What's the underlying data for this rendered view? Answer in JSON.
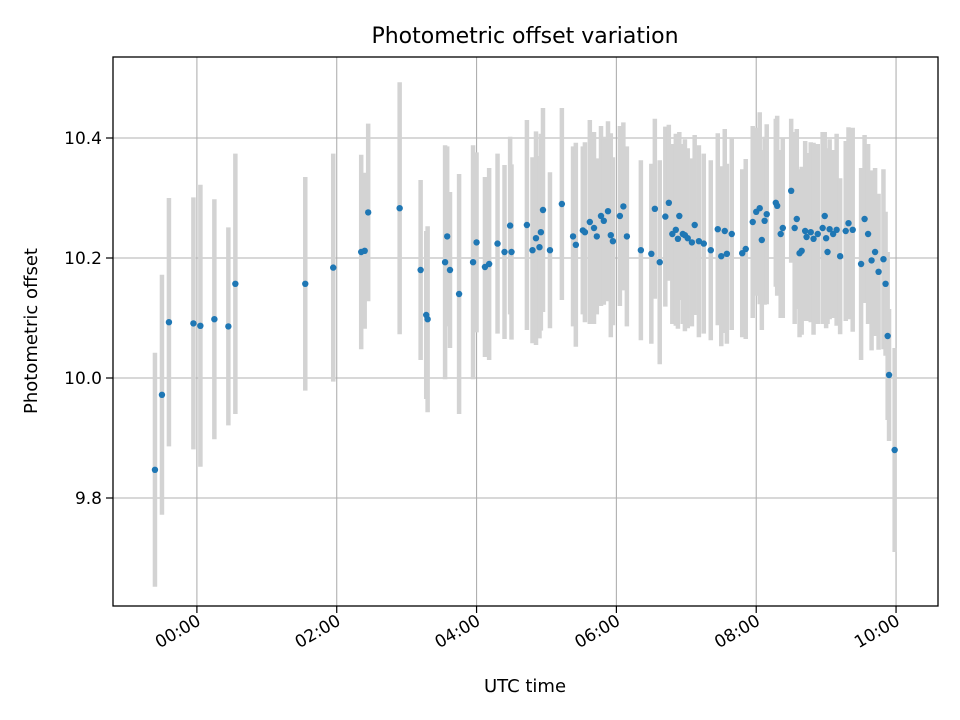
{
  "chart_data": {
    "type": "scatter",
    "title": "Photometric offset variation",
    "xlabel": "UTC time",
    "ylabel": "Photometric offset",
    "x_unit": "hours UTC",
    "xlim": [
      -1.2,
      10.6
    ],
    "ylim": [
      9.62,
      10.535
    ],
    "grid": true,
    "x_ticks": [
      {
        "value": 0,
        "label": "00:00"
      },
      {
        "value": 2,
        "label": "02:00"
      },
      {
        "value": 4,
        "label": "04:00"
      },
      {
        "value": 6,
        "label": "06:00"
      },
      {
        "value": 8,
        "label": "08:00"
      },
      {
        "value": 10,
        "label": "10:00"
      }
    ],
    "y_ticks": [
      {
        "value": 9.8,
        "label": "9.8"
      },
      {
        "value": 10.0,
        "label": "10.0"
      },
      {
        "value": 10.2,
        "label": "10.2"
      },
      {
        "value": 10.4,
        "label": "10.4"
      }
    ],
    "colors": {
      "points": "#1f77b4",
      "errorbars": "#d3d3d3",
      "grid": "#b0b0b0"
    },
    "series": [
      {
        "name": "Photometric offset",
        "points": [
          [
            -0.6,
            9.847,
            0.195
          ],
          [
            -0.5,
            9.972,
            0.2
          ],
          [
            -0.4,
            10.093,
            0.207
          ],
          [
            -0.05,
            10.091,
            0.21
          ],
          [
            0.05,
            10.087,
            0.235
          ],
          [
            0.25,
            10.098,
            0.2
          ],
          [
            0.45,
            10.086,
            0.165
          ],
          [
            0.55,
            10.157,
            0.217
          ],
          [
            1.55,
            10.157,
            0.178
          ],
          [
            1.95,
            10.184,
            0.19
          ],
          [
            2.35,
            10.21,
            0.162
          ],
          [
            2.4,
            10.212,
            0.13
          ],
          [
            2.45,
            10.276,
            0.148
          ],
          [
            2.9,
            10.283,
            0.21
          ],
          [
            3.2,
            10.18,
            0.15
          ],
          [
            3.28,
            10.105,
            0.14
          ],
          [
            3.3,
            10.098,
            0.155
          ],
          [
            3.55,
            10.193,
            0.195
          ],
          [
            3.58,
            10.236,
            0.15
          ],
          [
            3.62,
            10.18,
            0.13
          ],
          [
            3.75,
            10.14,
            0.2
          ],
          [
            3.95,
            10.193,
            0.195
          ],
          [
            4.0,
            10.226,
            0.15
          ],
          [
            4.12,
            10.185,
            0.15
          ],
          [
            4.18,
            10.19,
            0.16
          ],
          [
            4.3,
            10.224,
            0.15
          ],
          [
            4.4,
            10.21,
            0.145
          ],
          [
            4.48,
            10.254,
            0.148
          ],
          [
            4.5,
            10.21,
            0.146
          ],
          [
            4.72,
            10.255,
            0.175
          ],
          [
            4.8,
            10.213,
            0.155
          ],
          [
            4.85,
            10.233,
            0.178
          ],
          [
            4.9,
            10.218,
            0.152
          ],
          [
            4.92,
            10.243,
            0.164
          ],
          [
            4.95,
            10.28,
            0.17
          ],
          [
            5.05,
            10.213,
            0.13
          ],
          [
            5.22,
            10.29,
            0.16
          ],
          [
            5.38,
            10.236,
            0.15
          ],
          [
            5.42,
            10.222,
            0.17
          ],
          [
            5.52,
            10.246,
            0.14
          ],
          [
            5.55,
            10.243,
            0.15
          ],
          [
            5.62,
            10.26,
            0.17
          ],
          [
            5.68,
            10.25,
            0.16
          ],
          [
            5.72,
            10.236,
            0.13
          ],
          [
            5.78,
            10.27,
            0.15
          ],
          [
            5.82,
            10.262,
            0.14
          ],
          [
            5.88,
            10.278,
            0.15
          ],
          [
            5.92,
            10.238,
            0.17
          ],
          [
            5.95,
            10.228,
            0.14
          ],
          [
            6.05,
            10.27,
            0.15
          ],
          [
            6.1,
            10.286,
            0.14
          ],
          [
            6.15,
            10.236,
            0.15
          ],
          [
            6.35,
            10.213,
            0.15
          ],
          [
            6.5,
            10.207,
            0.15
          ],
          [
            6.55,
            10.282,
            0.15
          ],
          [
            6.62,
            10.193,
            0.17
          ],
          [
            6.7,
            10.269,
            0.15
          ],
          [
            6.75,
            10.292,
            0.13
          ],
          [
            6.8,
            10.24,
            0.15
          ],
          [
            6.85,
            10.247,
            0.16
          ],
          [
            6.88,
            10.232,
            0.15
          ],
          [
            6.9,
            10.27,
            0.14
          ],
          [
            6.95,
            10.24,
            0.15
          ],
          [
            6.98,
            10.238,
            0.16
          ],
          [
            7.02,
            10.233,
            0.15
          ],
          [
            7.08,
            10.226,
            0.14
          ],
          [
            7.12,
            10.255,
            0.15
          ],
          [
            7.18,
            10.228,
            0.16
          ],
          [
            7.25,
            10.224,
            0.15
          ],
          [
            7.35,
            10.213,
            0.15
          ],
          [
            7.45,
            10.248,
            0.16
          ],
          [
            7.5,
            10.203,
            0.15
          ],
          [
            7.55,
            10.245,
            0.17
          ],
          [
            7.58,
            10.207,
            0.15
          ],
          [
            7.65,
            10.24,
            0.16
          ],
          [
            7.8,
            10.208,
            0.14
          ],
          [
            7.85,
            10.215,
            0.15
          ],
          [
            7.95,
            10.26,
            0.16
          ],
          [
            8.0,
            10.277,
            0.14
          ],
          [
            8.05,
            10.283,
            0.16
          ],
          [
            8.08,
            10.23,
            0.15
          ],
          [
            8.12,
            10.262,
            0.14
          ],
          [
            8.15,
            10.273,
            0.15
          ],
          [
            8.28,
            10.292,
            0.14
          ],
          [
            8.3,
            10.287,
            0.15
          ],
          [
            8.35,
            10.24,
            0.14
          ],
          [
            8.38,
            10.25,
            0.15
          ],
          [
            8.5,
            10.312,
            0.12
          ],
          [
            8.55,
            10.25,
            0.16
          ],
          [
            8.58,
            10.265,
            0.15
          ],
          [
            8.62,
            10.208,
            0.14
          ],
          [
            8.65,
            10.212,
            0.14
          ],
          [
            8.7,
            10.245,
            0.15
          ],
          [
            8.72,
            10.235,
            0.14
          ],
          [
            8.78,
            10.243,
            0.15
          ],
          [
            8.82,
            10.232,
            0.16
          ],
          [
            8.88,
            10.24,
            0.15
          ],
          [
            8.95,
            10.25,
            0.16
          ],
          [
            8.98,
            10.27,
            0.14
          ],
          [
            9.0,
            10.233,
            0.15
          ],
          [
            9.02,
            10.21,
            0.12
          ],
          [
            9.05,
            10.248,
            0.15
          ],
          [
            9.1,
            10.24,
            0.14
          ],
          [
            9.15,
            10.247,
            0.16
          ],
          [
            9.2,
            10.203,
            0.13
          ],
          [
            9.28,
            10.245,
            0.15
          ],
          [
            9.32,
            10.258,
            0.16
          ],
          [
            9.38,
            10.247,
            0.17
          ],
          [
            9.5,
            10.19,
            0.16
          ],
          [
            9.55,
            10.265,
            0.14
          ],
          [
            9.6,
            10.24,
            0.15
          ],
          [
            9.65,
            10.196,
            0.15
          ],
          [
            9.7,
            10.21,
            0.14
          ],
          [
            9.75,
            10.177,
            0.13
          ],
          [
            9.82,
            10.198,
            0.15
          ],
          [
            9.85,
            10.157,
            0.12
          ],
          [
            9.88,
            10.07,
            0.14
          ],
          [
            9.9,
            10.005,
            0.11
          ],
          [
            9.98,
            9.88,
            0.17
          ]
        ]
      }
    ]
  }
}
